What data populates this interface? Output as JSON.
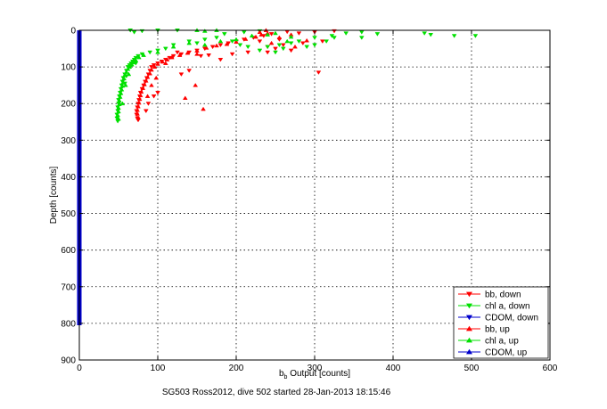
{
  "chart_data": {
    "type": "scatter",
    "title": "",
    "caption": "SG503 Ross2012, dive 502 started 28-Jan-2013 18:15:46",
    "xlabel_main": "b",
    "xlabel_sub": "b",
    "xlabel_rest": " Output [counts]",
    "ylabel": "Depth [counts]",
    "xlim": [
      0,
      600
    ],
    "ylim": [
      0,
      900
    ],
    "y_reversed": true,
    "grid": true,
    "legend_position": "bottom-right",
    "x_ticks": [
      "0",
      "100",
      "200",
      "300",
      "400",
      "500",
      "600"
    ],
    "y_ticks": [
      "0",
      "100",
      "200",
      "300",
      "400",
      "500",
      "600",
      "700",
      "800",
      "900"
    ],
    "series": [
      {
        "name": "bb, down",
        "color": "#ff0000",
        "marker": "triangle-down",
        "points": [
          [
            325,
            2
          ],
          [
            300,
            5
          ],
          [
            280,
            8
          ],
          [
            265,
            4
          ],
          [
            245,
            10
          ],
          [
            235,
            15
          ],
          [
            222,
            20
          ],
          [
            210,
            25
          ],
          [
            200,
            30
          ],
          [
            190,
            35
          ],
          [
            180,
            40
          ],
          [
            170,
            45
          ],
          [
            160,
            50
          ],
          [
            150,
            55
          ],
          [
            140,
            60
          ],
          [
            130,
            65
          ],
          [
            120,
            70
          ],
          [
            115,
            75
          ],
          [
            110,
            80
          ],
          [
            105,
            85
          ],
          [
            100,
            90
          ],
          [
            95,
            95
          ],
          [
            92,
            100
          ],
          [
            90,
            110
          ],
          [
            88,
            120
          ],
          [
            86,
            130
          ],
          [
            84,
            140
          ],
          [
            82,
            150
          ],
          [
            80,
            160
          ],
          [
            78,
            170
          ],
          [
            77,
            180
          ],
          [
            76,
            190
          ],
          [
            75,
            200
          ],
          [
            74,
            210
          ],
          [
            73,
            220
          ],
          [
            73,
            230
          ],
          [
            74,
            240
          ],
          [
            75,
            245
          ],
          [
            155,
            70
          ],
          [
            165,
            68
          ],
          [
            260,
            40
          ],
          [
            250,
            50
          ],
          [
            270,
            55
          ],
          [
            240,
            60
          ],
          [
            285,
            35
          ],
          [
            310,
            30
          ],
          [
            305,
            115
          ],
          [
            215,
            60
          ],
          [
            195,
            65
          ],
          [
            180,
            80
          ],
          [
            125,
            60
          ],
          [
            140,
            110
          ],
          [
            130,
            120
          ],
          [
            240,
            45
          ],
          [
            230,
            30
          ],
          [
            255,
            25
          ],
          [
            100,
            170
          ],
          [
            95,
            180
          ],
          [
            88,
            200
          ],
          [
            85,
            220
          ]
        ]
      },
      {
        "name": "chl a, down",
        "color": "#00e000",
        "marker": "triangle-down",
        "points": [
          [
            505,
            15
          ],
          [
            478,
            15
          ],
          [
            448,
            12
          ],
          [
            440,
            8
          ],
          [
            380,
            10
          ],
          [
            360,
            5
          ],
          [
            340,
            8
          ],
          [
            325,
            20
          ],
          [
            315,
            30
          ],
          [
            300,
            40
          ],
          [
            290,
            45
          ],
          [
            280,
            30
          ],
          [
            270,
            35
          ],
          [
            260,
            50
          ],
          [
            250,
            60
          ],
          [
            255,
            40
          ],
          [
            240,
            45
          ],
          [
            230,
            55
          ],
          [
            215,
            45
          ],
          [
            205,
            40
          ],
          [
            195,
            30
          ],
          [
            185,
            10
          ],
          [
            175,
            20
          ],
          [
            160,
            25
          ],
          [
            140,
            30
          ],
          [
            120,
            40
          ],
          [
            110,
            50
          ],
          [
            100,
            55
          ],
          [
            90,
            60
          ],
          [
            80,
            65
          ],
          [
            75,
            70
          ],
          [
            72,
            75
          ],
          [
            70,
            80
          ],
          [
            68,
            85
          ],
          [
            66,
            90
          ],
          [
            64,
            95
          ],
          [
            62,
            100
          ],
          [
            60,
            110
          ],
          [
            58,
            120
          ],
          [
            56,
            130
          ],
          [
            55,
            140
          ],
          [
            54,
            150
          ],
          [
            53,
            160
          ],
          [
            52,
            170
          ],
          [
            51,
            180
          ],
          [
            50,
            190
          ],
          [
            50,
            200
          ],
          [
            49,
            210
          ],
          [
            49,
            220
          ],
          [
            48,
            230
          ],
          [
            48,
            240
          ],
          [
            49,
            248
          ],
          [
            72,
            90
          ],
          [
            65,
            100
          ],
          [
            60,
            125
          ],
          [
            58,
            145
          ],
          [
            300,
            20
          ],
          [
            322,
            15
          ],
          [
            360,
            20
          ],
          [
            150,
            35
          ],
          [
            70,
            5
          ],
          [
            80,
            2
          ],
          [
            65,
            0
          ],
          [
            100,
            0
          ],
          [
            125,
            0
          ],
          [
            210,
            5
          ],
          [
            230,
            2
          ]
        ]
      },
      {
        "name": "CDOM, down",
        "color": "#0000cc",
        "marker": "triangle-down",
        "points": []
      },
      {
        "name": "bb, up",
        "color": "#ff0000",
        "marker": "triangle-up",
        "points": [
          [
            240,
            8
          ],
          [
            232,
            12
          ],
          [
            225,
            18
          ],
          [
            212,
            24
          ],
          [
            200,
            32
          ],
          [
            188,
            38
          ],
          [
            175,
            42
          ],
          [
            162,
            48
          ],
          [
            150,
            56
          ],
          [
            138,
            62
          ],
          [
            128,
            68
          ],
          [
            118,
            74
          ],
          [
            112,
            80
          ],
          [
            106,
            86
          ],
          [
            100,
            92
          ],
          [
            96,
            100
          ],
          [
            92,
            108
          ],
          [
            90,
            118
          ],
          [
            87,
            128
          ],
          [
            85,
            138
          ],
          [
            83,
            148
          ],
          [
            81,
            158
          ],
          [
            79,
            168
          ],
          [
            78,
            178
          ],
          [
            77,
            188
          ],
          [
            76,
            198
          ],
          [
            75,
            208
          ],
          [
            74,
            218
          ],
          [
            74,
            228
          ],
          [
            75,
            238
          ],
          [
            158,
            215
          ],
          [
            135,
            185
          ],
          [
            148,
            150
          ],
          [
            255,
            20
          ],
          [
            270,
            12
          ],
          [
            245,
            35
          ],
          [
            290,
            28
          ],
          [
            275,
            45
          ],
          [
            150,
            65
          ],
          [
            110,
            90
          ],
          [
            98,
            130
          ],
          [
            92,
            150
          ],
          [
            87,
            180
          ],
          [
            230,
            5
          ],
          [
            238,
            0
          ]
        ]
      },
      {
        "name": "chl a, up",
        "color": "#00e000",
        "marker": "triangle-up",
        "points": [
          [
            82,
            68
          ],
          [
            76,
            74
          ],
          [
            72,
            82
          ],
          [
            69,
            88
          ],
          [
            67,
            94
          ],
          [
            64,
            100
          ],
          [
            62,
            106
          ],
          [
            60,
            114
          ],
          [
            58,
            122
          ],
          [
            57,
            132
          ],
          [
            56,
            142
          ],
          [
            55,
            152
          ],
          [
            54,
            162
          ],
          [
            53,
            172
          ],
          [
            52,
            182
          ],
          [
            51,
            192
          ],
          [
            51,
            202
          ],
          [
            50,
            212
          ],
          [
            50,
            222
          ],
          [
            49,
            232
          ],
          [
            50,
            242
          ],
          [
            59,
            150
          ],
          [
            63,
            120
          ],
          [
            55,
            200
          ],
          [
            100,
            60
          ],
          [
            120,
            45
          ],
          [
            140,
            35
          ],
          [
            160,
            40
          ],
          [
            180,
            30
          ],
          [
            200,
            25
          ],
          [
            220,
            15
          ],
          [
            240,
            12
          ],
          [
            270,
            18
          ],
          [
            150,
            0
          ],
          [
            160,
            2
          ],
          [
            175,
            0
          ],
          [
            250,
            8
          ],
          [
            265,
            30
          ]
        ]
      },
      {
        "name": "CDOM, up",
        "color": "#0000cc",
        "marker": "triangle-up",
        "points": [
          [
            0,
            0
          ],
          [
            0,
            805
          ]
        ]
      }
    ]
  }
}
